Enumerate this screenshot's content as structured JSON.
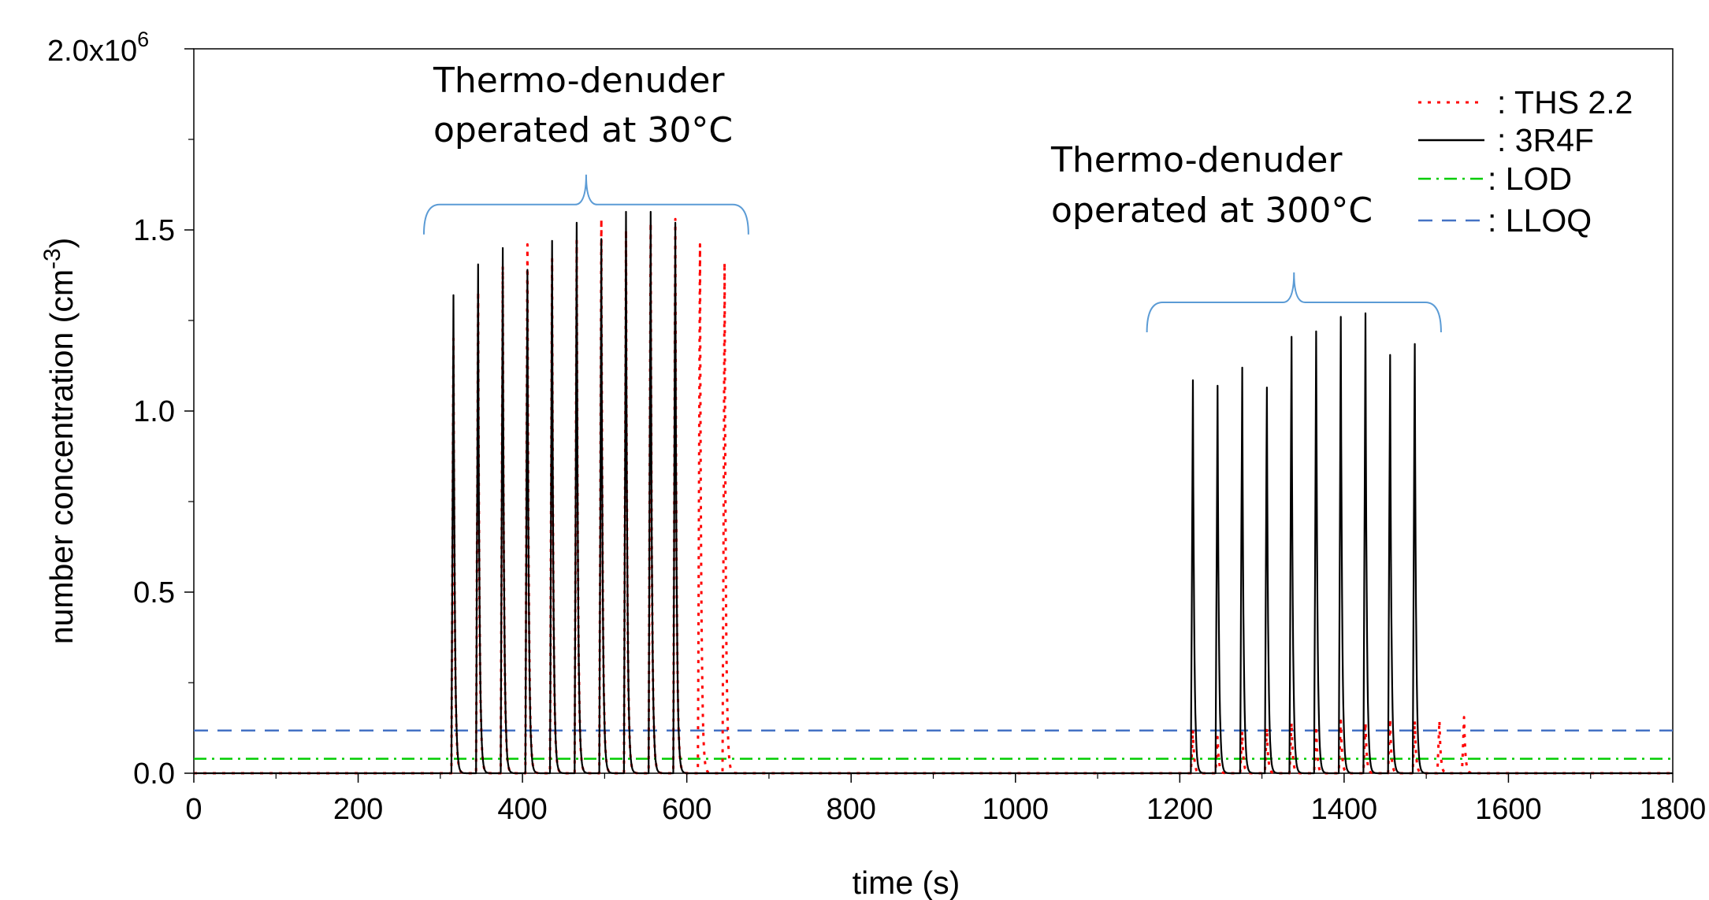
{
  "chart_data": {
    "type": "line",
    "xlabel": "time (s)",
    "ylabel_main": "number concentration (cm",
    "ylabel_exp": "-3",
    "ylabel_close": ")",
    "xlim": [
      0,
      1800
    ],
    "ylim": [
      0,
      2000000
    ],
    "x_ticks": [
      "0",
      "200",
      "400",
      "600",
      "800",
      "1000",
      "1200",
      "1400",
      "1600",
      "1800"
    ],
    "y_ticks": [
      {
        "value": 0,
        "label": "0.0"
      },
      {
        "value": 500000,
        "label": "0.5"
      },
      {
        "value": 1000000,
        "label": "1.0"
      },
      {
        "value": 1500000,
        "label": "1.5"
      }
    ],
    "y_top_label": {
      "value": 2000000,
      "mantissa": "2.0x10",
      "exponent": "6"
    },
    "legend_position": "top-right",
    "grid": false,
    "series": [
      {
        "name": ": THS 2.2",
        "color": "#ff0000",
        "style": "dotted",
        "peaks": [
          {
            "x": 316,
            "y": 1200000
          },
          {
            "x": 346,
            "y": 1330000
          },
          {
            "x": 376,
            "y": 1400000
          },
          {
            "x": 406,
            "y": 1460000
          },
          {
            "x": 436,
            "y": 1420000
          },
          {
            "x": 466,
            "y": 1470000
          },
          {
            "x": 496,
            "y": 1530000
          },
          {
            "x": 526,
            "y": 1500000
          },
          {
            "x": 556,
            "y": 1520000
          },
          {
            "x": 586,
            "y": 1530000
          },
          {
            "x": 616,
            "y": 1460000
          },
          {
            "x": 646,
            "y": 1410000
          },
          {
            "x": 1216,
            "y": 120000
          },
          {
            "x": 1246,
            "y": 100000
          },
          {
            "x": 1276,
            "y": 115000
          },
          {
            "x": 1306,
            "y": 125000
          },
          {
            "x": 1336,
            "y": 140000
          },
          {
            "x": 1366,
            "y": 130000
          },
          {
            "x": 1396,
            "y": 145000
          },
          {
            "x": 1426,
            "y": 140000
          },
          {
            "x": 1456,
            "y": 150000
          },
          {
            "x": 1486,
            "y": 145000
          },
          {
            "x": 1516,
            "y": 145000
          },
          {
            "x": 1546,
            "y": 155000
          }
        ]
      },
      {
        "name": ": 3R4F",
        "color": "#000000",
        "style": "solid",
        "peaks": [
          {
            "x": 316,
            "y": 1320000
          },
          {
            "x": 346,
            "y": 1405000
          },
          {
            "x": 376,
            "y": 1450000
          },
          {
            "x": 406,
            "y": 1390000
          },
          {
            "x": 436,
            "y": 1470000
          },
          {
            "x": 466,
            "y": 1520000
          },
          {
            "x": 496,
            "y": 1475000
          },
          {
            "x": 526,
            "y": 1550000
          },
          {
            "x": 556,
            "y": 1550000
          },
          {
            "x": 586,
            "y": 1520000
          },
          {
            "x": 1216,
            "y": 1085000
          },
          {
            "x": 1246,
            "y": 1070000
          },
          {
            "x": 1276,
            "y": 1120000
          },
          {
            "x": 1306,
            "y": 1065000
          },
          {
            "x": 1336,
            "y": 1205000
          },
          {
            "x": 1366,
            "y": 1220000
          },
          {
            "x": 1396,
            "y": 1260000
          },
          {
            "x": 1426,
            "y": 1270000
          },
          {
            "x": 1456,
            "y": 1155000
          },
          {
            "x": 1486,
            "y": 1185000
          }
        ]
      },
      {
        "name": ": LOD",
        "color": "#00cc00",
        "style": "dashdot",
        "constant": 40000
      },
      {
        "name": ": LLOQ",
        "color": "#4472c4",
        "style": "dashed",
        "constant": 118000
      }
    ],
    "annotations": [
      {
        "lines": [
          "Thermo-denuder",
          "operated at 30°C"
        ],
        "bracket_x": [
          280,
          675
        ],
        "bracket_y": 1570000
      },
      {
        "lines": [
          "Thermo-denuder",
          "operated at 300°C"
        ],
        "bracket_x": [
          1160,
          1518
        ],
        "bracket_y": 1300000
      }
    ]
  }
}
